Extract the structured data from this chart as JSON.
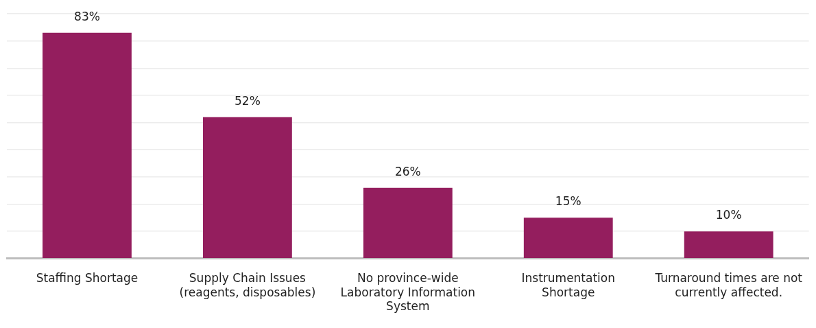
{
  "chart_data": {
    "type": "bar",
    "categories": [
      "Staffing Shortage",
      "Supply Chain Issues (reagents, disposables)",
      "No province-wide Laboratory Information System",
      "Instrumentation Shortage",
      "Turnaround times are not currently affected."
    ],
    "values": [
      83,
      52,
      26,
      15,
      10
    ],
    "value_labels": [
      "83%",
      "52%",
      "26%",
      "15%",
      "10%"
    ],
    "color": "#941e5e",
    "ylim": [
      0,
      90
    ],
    "yticks": [
      {
        "value": 0,
        "label": null
      },
      {
        "value": 10,
        "label": null
      },
      {
        "value": 20,
        "label": null
      },
      {
        "value": 30,
        "label": null
      },
      {
        "value": 40,
        "label": null
      },
      {
        "value": 50,
        "label": null
      },
      {
        "value": 60,
        "label": null
      },
      {
        "value": 70,
        "label": null
      },
      {
        "value": 80,
        "label": null
      },
      {
        "value": 90,
        "label": null
      }
    ],
    "grid": "y",
    "tick_labels": "x",
    "legend": false
  }
}
